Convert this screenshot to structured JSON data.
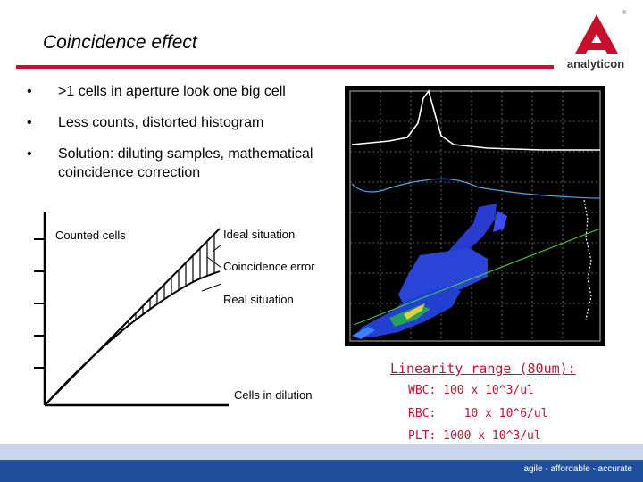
{
  "slide": {
    "title": "Coincidence effect",
    "bullets": [
      ">1 cells in aperture look one big cell",
      "Less counts, distorted histogram",
      "Solution: diluting samples, mathematical coincidence correction"
    ],
    "bullet_symbol": "•"
  },
  "logo": {
    "text": "analyticon",
    "mark": "®",
    "brand_color": "#c8102e"
  },
  "coincidence_diagram": {
    "y_label": "Counted cells",
    "x_label": "Cells in dilution",
    "ideal_label": "Ideal situation",
    "error_label": "Coincidence error",
    "real_label": "Real situation"
  },
  "linearity": {
    "title": "Linearity range (80um):",
    "rows": [
      "WBC: 100 x 10^3/ul",
      "RBC:    10 x 10^6/ul",
      "PLT: 1000 x 10^3/ul"
    ],
    "color": "#c8102e"
  },
  "footer": {
    "tagline": "agile - affordable - accurate",
    "color": "#1f4e9c"
  }
}
